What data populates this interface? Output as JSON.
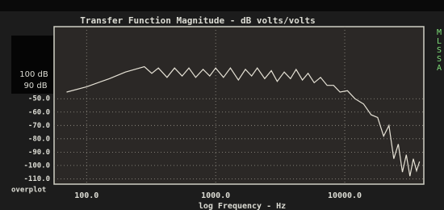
{
  "chart_data": {
    "type": "line",
    "title": "Transfer Function Magnitude - dB volts/volts",
    "side_label": [
      "M",
      "L",
      "S",
      "S",
      "A"
    ],
    "annotations": [
      "100 dB",
      "90 dB"
    ],
    "corner_label": "overplot",
    "x_label": "log Frequency - Hz",
    "x_log": true,
    "xlim": [
      56,
      41000
    ],
    "ylim": [
      -114,
      4
    ],
    "xticks": [
      {
        "value": 100,
        "label": "100.0"
      },
      {
        "value": 1000,
        "label": "1000.0"
      },
      {
        "value": 10000,
        "label": "10000.0"
      }
    ],
    "yticks": [
      {
        "value": -50,
        "label": "-50.0"
      },
      {
        "value": -60,
        "label": "-60.0"
      },
      {
        "value": -70,
        "label": "-70.0"
      },
      {
        "value": -80,
        "label": "-80.0"
      },
      {
        "value": -90,
        "label": "-90.0"
      },
      {
        "value": -100,
        "label": "-100.0"
      },
      {
        "value": -110,
        "label": "-110.0"
      }
    ],
    "grid": true,
    "color": "#e6e2d6",
    "x": [
      70,
      100,
      150,
      200,
      280,
      320,
      360,
      420,
      480,
      550,
      620,
      700,
      800,
      900,
      1000,
      1150,
      1300,
      1500,
      1700,
      1900,
      2100,
      2400,
      2700,
      3000,
      3400,
      3800,
      4200,
      4700,
      5200,
      5800,
      6500,
      7300,
      8200,
      9200,
      10500,
      12000,
      14000,
      16000,
      18000,
      20000,
      22000,
      24000,
      26000,
      28000,
      30000,
      32000,
      34000,
      36000,
      38000
    ],
    "values": [
      -45,
      -41,
      -35,
      -30,
      -26,
      -31,
      -27,
      -34,
      -27,
      -33,
      -27,
      -34,
      -28,
      -33,
      -27,
      -34,
      -27,
      -36,
      -28,
      -33,
      -27,
      -35,
      -29,
      -37,
      -30,
      -35,
      -28,
      -36,
      -31,
      -38,
      -34,
      -40,
      -40,
      -45,
      -44,
      -50,
      -54,
      -62,
      -64,
      -78,
      -70,
      -95,
      -84,
      -105,
      -92,
      -108,
      -95,
      -104,
      -97
    ]
  }
}
